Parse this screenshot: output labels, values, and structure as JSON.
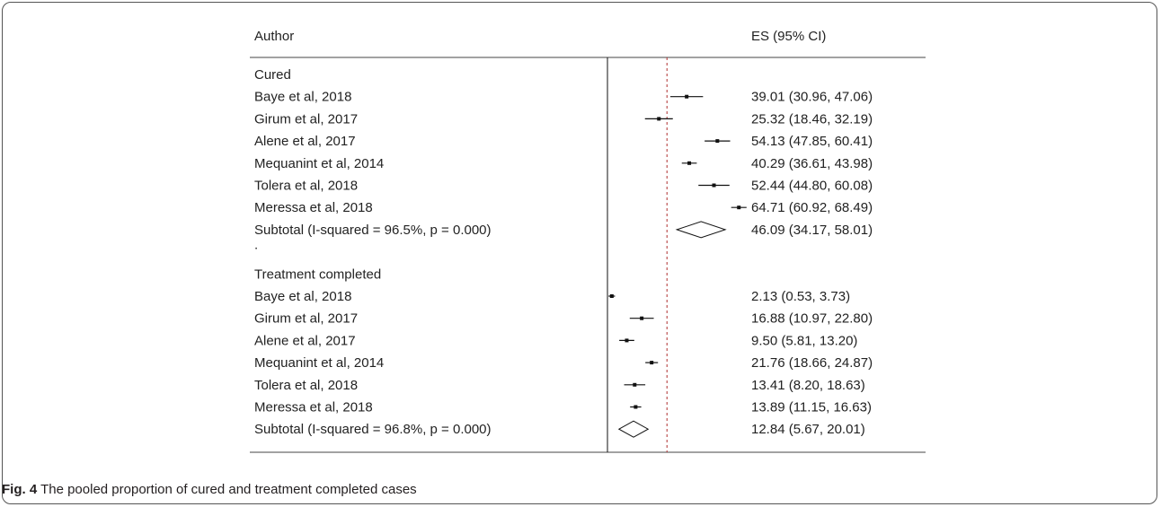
{
  "chart_data": {
    "type": "forest",
    "columns": {
      "author": "Author",
      "es": "ES (95% CI)"
    },
    "groups": [
      {
        "name": "Cured",
        "studies": [
          {
            "author": "Baye et al, 2018",
            "es": 39.01,
            "lo": 30.96,
            "hi": 47.06,
            "label": "39.01 (30.96, 47.06)"
          },
          {
            "author": "Girum et al, 2017",
            "es": 25.32,
            "lo": 18.46,
            "hi": 32.19,
            "label": "25.32 (18.46, 32.19)"
          },
          {
            "author": "Alene et al, 2017",
            "es": 54.13,
            "lo": 47.85,
            "hi": 60.41,
            "label": "54.13 (47.85, 60.41)"
          },
          {
            "author": "Mequanint et al, 2014",
            "es": 40.29,
            "lo": 36.61,
            "hi": 43.98,
            "label": "40.29 (36.61, 43.98)"
          },
          {
            "author": "Tolera et al, 2018",
            "es": 52.44,
            "lo": 44.8,
            "hi": 60.08,
            "label": "52.44 (44.80, 60.08)"
          },
          {
            "author": "Meressa et al, 2018",
            "es": 64.71,
            "lo": 60.92,
            "hi": 68.49,
            "label": "64.71 (60.92, 68.49)"
          }
        ],
        "subtotal": {
          "author": "Subtotal  (I-squared = 96.5%, p = 0.000)",
          "es": 46.09,
          "lo": 34.17,
          "hi": 58.01,
          "label": "46.09 (34.17, 58.01)"
        }
      },
      {
        "name": "Treatment completed",
        "studies": [
          {
            "author": "Baye et al, 2018",
            "es": 2.13,
            "lo": 0.53,
            "hi": 3.73,
            "label": "2.13 (0.53, 3.73)"
          },
          {
            "author": "Girum et al, 2017",
            "es": 16.88,
            "lo": 10.97,
            "hi": 22.8,
            "label": "16.88 (10.97, 22.80)"
          },
          {
            "author": "Alene et al, 2017",
            "es": 9.5,
            "lo": 5.81,
            "hi": 13.2,
            "label": "9.50 (5.81, 13.20)"
          },
          {
            "author": "Mequanint et al, 2014",
            "es": 21.76,
            "lo": 18.66,
            "hi": 24.87,
            "label": "21.76 (18.66, 24.87)"
          },
          {
            "author": "Tolera et al, 2018",
            "es": 13.41,
            "lo": 8.2,
            "hi": 18.63,
            "label": "13.41 (8.20, 18.63)"
          },
          {
            "author": "Meressa et al, 2018",
            "es": 13.89,
            "lo": 11.15,
            "hi": 16.63,
            "label": "13.89 (11.15, 16.63)"
          }
        ],
        "subtotal": {
          "author": "Subtotal  (I-squared = 96.8%, p = 0.000)",
          "es": 12.84,
          "lo": 5.67,
          "hi": 20.01,
          "label": "12.84 (5.67, 20.01)"
        }
      }
    ],
    "separator": ".",
    "null_line": 0,
    "overall_line": 29.3
  },
  "caption": {
    "label": "Fig. 4",
    "text": " The pooled proportion of cured and treatment completed cases"
  }
}
